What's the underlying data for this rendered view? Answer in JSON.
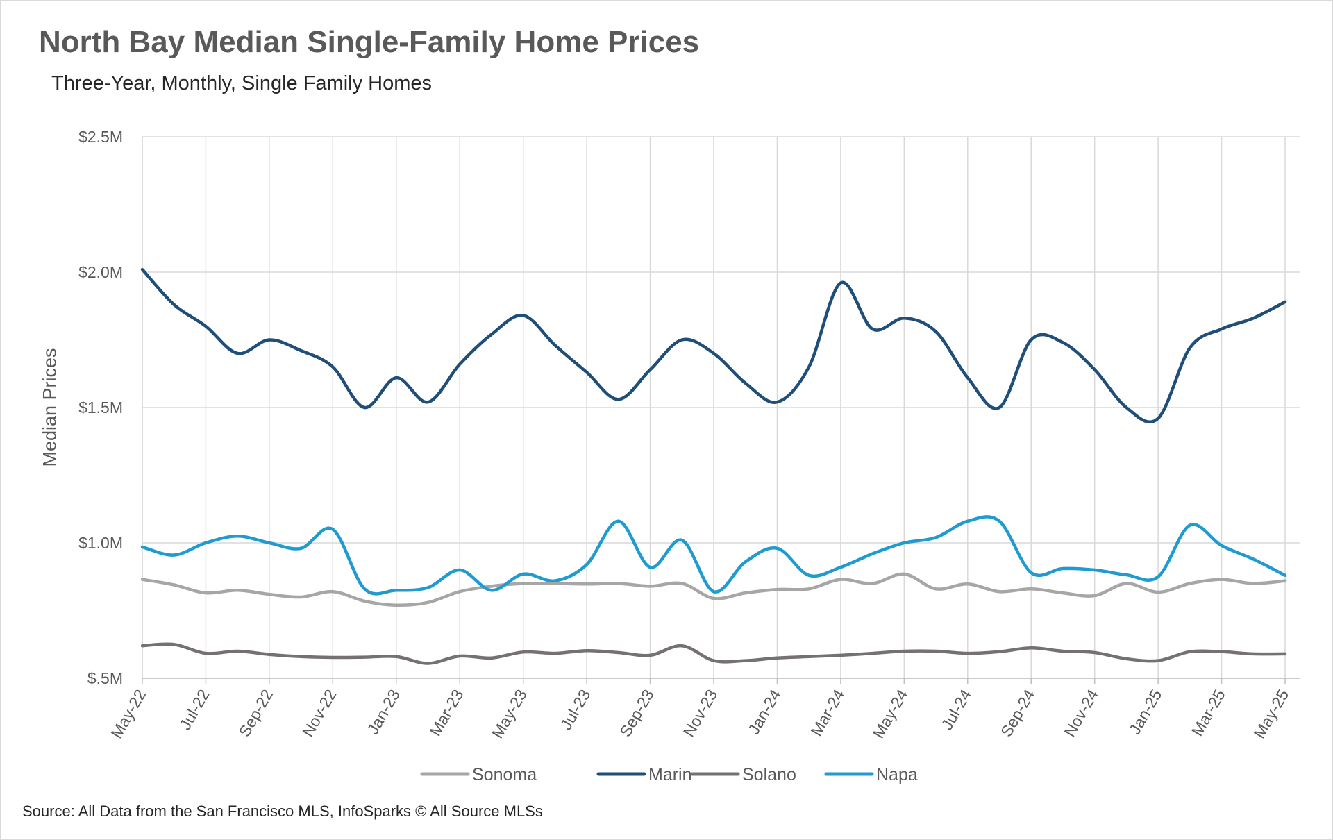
{
  "chart_data": {
    "type": "line",
    "title": "North Bay Median Single-Family Home Prices",
    "subtitle": "Three-Year, Monthly, Single Family Homes",
    "ylabel": "Median Prices",
    "xlabel": "",
    "source": "Source: All Data from the San Francisco MLS, InfoSparks © All Source MLSs",
    "ylim": [
      500000,
      2500000
    ],
    "yticks": [
      {
        "value": 500000,
        "label": "$.5M"
      },
      {
        "value": 1000000,
        "label": "$1.0M"
      },
      {
        "value": 1500000,
        "label": "$1.5M"
      },
      {
        "value": 2000000,
        "label": "$2.0M"
      },
      {
        "value": 2500000,
        "label": "$2.5M"
      }
    ],
    "categories": [
      "May-22",
      "Jun-22",
      "Jul-22",
      "Aug-22",
      "Sep-22",
      "Oct-22",
      "Nov-22",
      "Dec-22",
      "Jan-23",
      "Feb-23",
      "Mar-23",
      "Apr-23",
      "May-23",
      "Jun-23",
      "Jul-23",
      "Aug-23",
      "Sep-23",
      "Oct-23",
      "Nov-23",
      "Dec-23",
      "Jan-24",
      "Feb-24",
      "Mar-24",
      "Apr-24",
      "May-24",
      "Jun-24",
      "Jul-24",
      "Aug-24",
      "Sep-24",
      "Oct-24",
      "Nov-24",
      "Dec-24",
      "Jan-25",
      "Feb-25",
      "Mar-25",
      "Apr-25",
      "May-25"
    ],
    "x_tick_labels": [
      "May-22",
      "Jul-22",
      "Sep-22",
      "Nov-22",
      "Jan-23",
      "Mar-23",
      "May-23",
      "Jul-23",
      "Sep-23",
      "Nov-23",
      "Jan-24",
      "Mar-24",
      "May-24",
      "Jul-24",
      "Sep-24",
      "Nov-24",
      "Jan-25",
      "Mar-25",
      "May-25"
    ],
    "grid": true,
    "legend_position": "bottom",
    "series": [
      {
        "name": "Sonoma",
        "color": "#a6a6a6",
        "values": [
          865000,
          845000,
          815000,
          825000,
          810000,
          800000,
          820000,
          785000,
          770000,
          780000,
          820000,
          840000,
          850000,
          850000,
          848000,
          850000,
          840000,
          850000,
          795000,
          815000,
          828000,
          830000,
          865000,
          850000,
          885000,
          830000,
          848000,
          820000,
          830000,
          815000,
          805000,
          850000,
          818000,
          850000,
          865000,
          850000,
          860000
        ]
      },
      {
        "name": "Marin",
        "color": "#1f4e79",
        "values": [
          2010000,
          1880000,
          1800000,
          1700000,
          1750000,
          1710000,
          1650000,
          1500000,
          1610000,
          1520000,
          1660000,
          1770000,
          1840000,
          1730000,
          1630000,
          1530000,
          1640000,
          1750000,
          1700000,
          1590000,
          1520000,
          1650000,
          1960000,
          1790000,
          1830000,
          1780000,
          1610000,
          1500000,
          1750000,
          1740000,
          1640000,
          1500000,
          1460000,
          1720000,
          1790000,
          1830000,
          1890000
        ]
      },
      {
        "name": "Solano",
        "color": "#767171",
        "values": [
          620000,
          625000,
          592000,
          600000,
          588000,
          580000,
          577000,
          578000,
          580000,
          555000,
          582000,
          575000,
          597000,
          592000,
          602000,
          595000,
          585000,
          620000,
          565000,
          565000,
          575000,
          580000,
          585000,
          592000,
          600000,
          600000,
          592000,
          598000,
          612000,
          600000,
          595000,
          572000,
          565000,
          598000,
          598000,
          590000,
          590000
        ]
      },
      {
        "name": "Napa",
        "color": "#1f9bcf",
        "values": [
          985000,
          955000,
          1000000,
          1025000,
          1000000,
          980000,
          1050000,
          830000,
          825000,
          835000,
          900000,
          825000,
          885000,
          860000,
          920000,
          1080000,
          910000,
          1010000,
          820000,
          930000,
          980000,
          880000,
          910000,
          960000,
          1000000,
          1020000,
          1080000,
          1080000,
          890000,
          905000,
          900000,
          882000,
          875000,
          1065000,
          990000,
          940000,
          880000
        ]
      }
    ]
  }
}
